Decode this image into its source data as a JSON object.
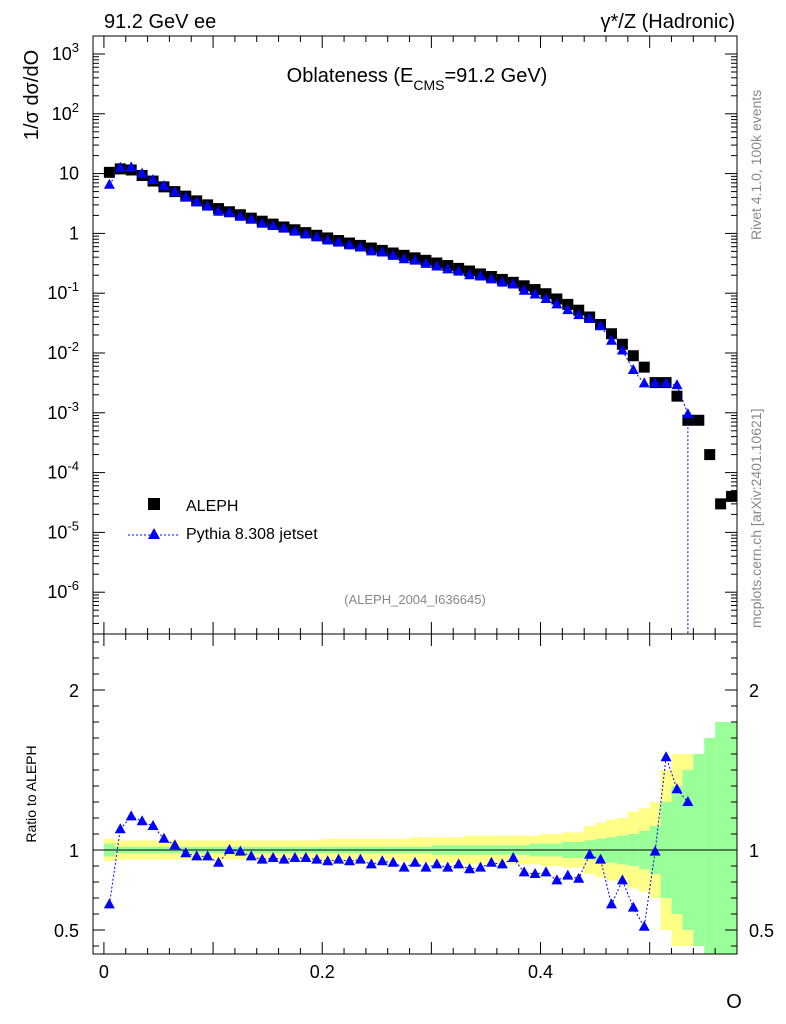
{
  "header": {
    "left_label": "91.2 GeV ee",
    "right_label_sym": "γ*/Z",
    "right_label_rest": " (Hadronic)"
  },
  "side_labels": {
    "rivet": "Rivet 4.1.0,  100k events",
    "mcplots": "mcplots.cern.ch [arXiv:2401.10621]"
  },
  "chart_data": [
    {
      "type": "scatter",
      "title_main": "Oblateness (E",
      "title_sub": "CMS",
      "title_tail": "=91.2 GeV)",
      "analysis_id": "(ALEPH_2004_I636645)",
      "ylabel": "1/σ  dσ/dO",
      "yscale": "log",
      "ylim": [
        2e-07,
        2000
      ],
      "xlim": [
        -0.01,
        0.58
      ],
      "yticks": [
        "10^-6",
        "10^-5",
        "10^-4",
        "10^-3",
        "10^-2",
        "10^-1",
        "1",
        "10",
        "10^2",
        "10^3"
      ],
      "legend_position": "lower-left",
      "series": [
        {
          "name": "ALEPH",
          "marker": "square",
          "color": "#000000",
          "x": [
            0.005,
            0.015,
            0.025,
            0.035,
            0.045,
            0.055,
            0.065,
            0.075,
            0.085,
            0.095,
            0.105,
            0.115,
            0.125,
            0.135,
            0.145,
            0.155,
            0.165,
            0.175,
            0.185,
            0.195,
            0.205,
            0.215,
            0.225,
            0.235,
            0.245,
            0.255,
            0.265,
            0.275,
            0.285,
            0.295,
            0.305,
            0.315,
            0.325,
            0.335,
            0.345,
            0.355,
            0.365,
            0.375,
            0.385,
            0.395,
            0.405,
            0.415,
            0.425,
            0.435,
            0.445,
            0.455,
            0.465,
            0.475,
            0.485,
            0.495,
            0.505,
            0.515,
            0.525,
            0.535,
            0.545,
            0.555,
            0.565,
            0.575
          ],
          "values": [
            10.5,
            12.0,
            11.5,
            9.3,
            7.5,
            6.0,
            5.0,
            4.2,
            3.5,
            3.0,
            2.6,
            2.3,
            2.05,
            1.8,
            1.6,
            1.43,
            1.28,
            1.15,
            1.03,
            0.93,
            0.84,
            0.76,
            0.69,
            0.63,
            0.57,
            0.52,
            0.47,
            0.43,
            0.39,
            0.355,
            0.32,
            0.29,
            0.26,
            0.235,
            0.21,
            0.19,
            0.17,
            0.152,
            0.133,
            0.115,
            0.098,
            0.08,
            0.065,
            0.052,
            0.04,
            0.03,
            0.021,
            0.014,
            0.009,
            0.0058,
            0.0032,
            0.0032,
            0.0019,
            0.00075,
            0.00075,
            0.0002,
            3e-05,
            4e-05
          ]
        },
        {
          "name": "Pythia 8.308 jetset",
          "marker": "triangle",
          "linestyle": "dotted",
          "color": "#0000ff",
          "x": [
            0.005,
            0.015,
            0.025,
            0.035,
            0.045,
            0.055,
            0.065,
            0.075,
            0.085,
            0.095,
            0.105,
            0.115,
            0.125,
            0.135,
            0.145,
            0.155,
            0.165,
            0.175,
            0.185,
            0.195,
            0.205,
            0.215,
            0.225,
            0.235,
            0.245,
            0.255,
            0.265,
            0.275,
            0.285,
            0.295,
            0.305,
            0.315,
            0.325,
            0.335,
            0.345,
            0.355,
            0.365,
            0.375,
            0.385,
            0.395,
            0.405,
            0.415,
            0.425,
            0.435,
            0.445,
            0.455,
            0.465,
            0.475,
            0.485,
            0.495,
            0.505,
            0.515,
            0.525,
            0.535
          ],
          "values": [
            6.5,
            12.5,
            12.7,
            10.0,
            7.8,
            6.2,
            4.9,
            4.0,
            3.3,
            2.8,
            2.3,
            2.2,
            1.9,
            1.7,
            1.45,
            1.33,
            1.2,
            1.07,
            0.96,
            0.86,
            0.76,
            0.7,
            0.63,
            0.58,
            0.5,
            0.48,
            0.42,
            0.37,
            0.35,
            0.31,
            0.28,
            0.25,
            0.23,
            0.2,
            0.19,
            0.17,
            0.15,
            0.14,
            0.11,
            0.095,
            0.08,
            0.065,
            0.052,
            0.043,
            0.037,
            0.028,
            0.016,
            0.011,
            0.0052,
            0.0031,
            0.0031,
            0.0031,
            0.0029,
            0.00095
          ]
        }
      ]
    },
    {
      "type": "scatter",
      "title": "Ratio to ALEPH",
      "ylabel": "Ratio to ALEPH",
      "xlabel": "O",
      "xlim": [
        -0.01,
        0.58
      ],
      "ylim": [
        0.35,
        2.35
      ],
      "xticks": [
        0,
        0.2,
        0.4
      ],
      "xtick_labels": [
        "0",
        "0.2",
        "0.4"
      ],
      "yticks": [
        0.5,
        1,
        2
      ],
      "ytick_labels": [
        "0.5",
        "1",
        "2"
      ],
      "reference_line": 1,
      "band_x": [
        0.005,
        0.015,
        0.025,
        0.035,
        0.045,
        0.055,
        0.065,
        0.075,
        0.085,
        0.095,
        0.105,
        0.115,
        0.125,
        0.135,
        0.145,
        0.155,
        0.165,
        0.175,
        0.185,
        0.195,
        0.205,
        0.215,
        0.225,
        0.235,
        0.245,
        0.255,
        0.265,
        0.275,
        0.285,
        0.295,
        0.305,
        0.315,
        0.325,
        0.335,
        0.345,
        0.355,
        0.365,
        0.375,
        0.385,
        0.395,
        0.405,
        0.415,
        0.425,
        0.435,
        0.445,
        0.455,
        0.465,
        0.475,
        0.485,
        0.495,
        0.505,
        0.515,
        0.525,
        0.535,
        0.545,
        0.555,
        0.565,
        0.575
      ],
      "band_stat": [
        0.04,
        0.02,
        0.02,
        0.02,
        0.02,
        0.02,
        0.02,
        0.02,
        0.02,
        0.02,
        0.02,
        0.02,
        0.02,
        0.02,
        0.02,
        0.02,
        0.02,
        0.02,
        0.02,
        0.02,
        0.02,
        0.02,
        0.02,
        0.02,
        0.02,
        0.02,
        0.02,
        0.02,
        0.02,
        0.02,
        0.03,
        0.03,
        0.03,
        0.03,
        0.03,
        0.03,
        0.03,
        0.03,
        0.03,
        0.04,
        0.04,
        0.04,
        0.05,
        0.05,
        0.06,
        0.07,
        0.08,
        0.09,
        0.1,
        0.12,
        0.15,
        0.3,
        0.4,
        0.5,
        0.6,
        0.7,
        0.8,
        0.8
      ],
      "band_total": [
        0.07,
        0.06,
        0.06,
        0.06,
        0.06,
        0.06,
        0.06,
        0.06,
        0.06,
        0.06,
        0.06,
        0.06,
        0.06,
        0.06,
        0.06,
        0.06,
        0.06,
        0.06,
        0.06,
        0.06,
        0.07,
        0.07,
        0.07,
        0.07,
        0.07,
        0.07,
        0.07,
        0.07,
        0.08,
        0.08,
        0.08,
        0.08,
        0.08,
        0.09,
        0.09,
        0.09,
        0.09,
        0.09,
        0.09,
        0.09,
        0.1,
        0.1,
        0.11,
        0.11,
        0.15,
        0.17,
        0.19,
        0.2,
        0.24,
        0.26,
        0.3,
        0.5,
        0.6,
        0.6,
        0.6,
        0.6,
        0.7,
        0.7
      ],
      "series": [
        {
          "name": "Pythia 8.308 jetset",
          "marker": "triangle",
          "linestyle": "dotted",
          "color": "#0000ff",
          "x": [
            0.005,
            0.015,
            0.025,
            0.035,
            0.045,
            0.055,
            0.065,
            0.075,
            0.085,
            0.095,
            0.105,
            0.115,
            0.125,
            0.135,
            0.145,
            0.155,
            0.165,
            0.175,
            0.185,
            0.195,
            0.205,
            0.215,
            0.225,
            0.235,
            0.245,
            0.255,
            0.265,
            0.275,
            0.285,
            0.295,
            0.305,
            0.315,
            0.325,
            0.335,
            0.345,
            0.355,
            0.365,
            0.375,
            0.385,
            0.395,
            0.405,
            0.415,
            0.425,
            0.435,
            0.445,
            0.455,
            0.465,
            0.475,
            0.485,
            0.495,
            0.505,
            0.515,
            0.525,
            0.535
          ],
          "values": [
            0.66,
            1.13,
            1.21,
            1.18,
            1.15,
            1.07,
            1.03,
            0.98,
            0.96,
            0.96,
            0.92,
            1.0,
            0.99,
            0.96,
            0.94,
            0.95,
            0.94,
            0.95,
            0.95,
            0.94,
            0.93,
            0.94,
            0.93,
            0.94,
            0.91,
            0.93,
            0.92,
            0.89,
            0.92,
            0.89,
            0.91,
            0.89,
            0.91,
            0.88,
            0.89,
            0.92,
            0.91,
            0.95,
            0.86,
            0.85,
            0.86,
            0.81,
            0.84,
            0.82,
            0.97,
            0.94,
            0.66,
            0.81,
            0.64,
            0.52,
            0.99,
            1.58,
            1.38,
            1.3
          ]
        }
      ]
    }
  ]
}
